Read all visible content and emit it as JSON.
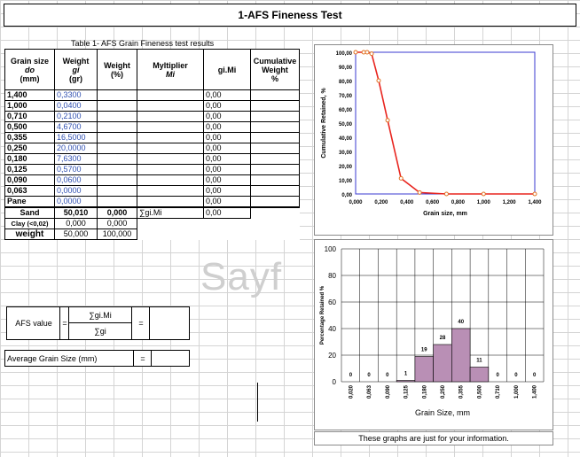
{
  "sheet": {
    "title": "1-AFS Fineness Test",
    "table_caption": "Table 1- AFS Grain Fineness test results",
    "watermark": "Sayf"
  },
  "table": {
    "headers": {
      "grain_size": [
        "Grain size",
        "do",
        "(mm)"
      ],
      "weight_gr": [
        "Weight",
        "gi",
        "(gr)"
      ],
      "weight_pct": [
        "Weight",
        "(%)"
      ],
      "multiplier": [
        "Myltiplier",
        "Mi"
      ],
      "gimi": "gi.Mi",
      "cumulative": [
        "Cumulative",
        "Weight",
        "%"
      ]
    },
    "rows": [
      {
        "size": "1,400",
        "weight": "0,3300",
        "gimi": "0,00"
      },
      {
        "size": "1,000",
        "weight": "0,0400",
        "gimi": "0,00"
      },
      {
        "size": "0,710",
        "weight": "0,2100",
        "gimi": "0,00"
      },
      {
        "size": "0,500",
        "weight": "4,6700",
        "gimi": "0,00"
      },
      {
        "size": "0,355",
        "weight": "16,5000",
        "gimi": "0,00"
      },
      {
        "size": "0,250",
        "weight": "20,0000",
        "gimi": "0,00"
      },
      {
        "size": "0,180",
        "weight": "7,6300",
        "gimi": "0,00"
      },
      {
        "size": "0,125",
        "weight": "0,5700",
        "gimi": "0,00"
      },
      {
        "size": "0,090",
        "weight": "0,0600",
        "gimi": "0,00"
      },
      {
        "size": "0,063",
        "weight": "0,0000",
        "gimi": "0,00"
      },
      {
        "size": "Pane",
        "weight": "0,0000",
        "gimi": "0,00"
      }
    ],
    "sand_row": {
      "label": "Sand",
      "weight": "50,010",
      "pct": "0,000",
      "mult": "∑gi.Mi",
      "gimi": "0,00"
    },
    "clay_row": {
      "label": "Clay (<0,02)",
      "weight": "0,000",
      "pct": "0,000"
    },
    "total_row": {
      "label": "weight",
      "weight": "50,000",
      "pct": "100,000"
    }
  },
  "afs": {
    "label": "AFS value",
    "eq": "=",
    "numerator": "∑gi.Mi",
    "denominator": "∑gi",
    "eq2": "="
  },
  "avg": {
    "label": "Average Grain Size (mm)",
    "eq": "="
  },
  "note": "These graphs are just for your information.",
  "chart_data": [
    {
      "type": "line",
      "title": "",
      "xlabel": "Grain size, mm",
      "ylabel": "Cumulative Retained, %",
      "xlim": [
        0,
        1.4
      ],
      "ylim": [
        0,
        100
      ],
      "x_ticks": [
        "0,000",
        "0,200",
        "0,400",
        "0,600",
        "0,800",
        "1,000",
        "1,200",
        "1,400"
      ],
      "y_ticks": [
        "0,00",
        "10,00",
        "20,00",
        "30,00",
        "40,00",
        "50,00",
        "60,00",
        "70,00",
        "80,00",
        "90,00",
        "100,00"
      ],
      "grid": false,
      "color": "#e8251f",
      "points": [
        {
          "x": 0.0,
          "y": 100
        },
        {
          "x": 0.063,
          "y": 100
        },
        {
          "x": 0.09,
          "y": 100
        },
        {
          "x": 0.125,
          "y": 99
        },
        {
          "x": 0.18,
          "y": 80
        },
        {
          "x": 0.25,
          "y": 52
        },
        {
          "x": 0.355,
          "y": 11
        },
        {
          "x": 0.5,
          "y": 1
        },
        {
          "x": 0.71,
          "y": 0
        },
        {
          "x": 1.0,
          "y": 0
        },
        {
          "x": 1.4,
          "y": 0
        }
      ]
    },
    {
      "type": "bar",
      "title": "",
      "xlabel": "Grain Size, mm",
      "ylabel": "Percentage Retained %",
      "ylim": [
        0,
        100
      ],
      "y_ticks": [
        "0",
        "20",
        "40",
        "60",
        "80",
        "100"
      ],
      "grid": true,
      "categories": [
        "0,020",
        "0,063",
        "0,090",
        "0,125",
        "0,180",
        "0,250",
        "0,355",
        "0,500",
        "0,710",
        "1,000",
        "1,400"
      ],
      "values": [
        0,
        0,
        0,
        1,
        19,
        28,
        40,
        11,
        0,
        0,
        0
      ],
      "labels": [
        "0",
        "0",
        "0",
        "1",
        "19",
        "28",
        "40",
        "11",
        "0",
        "0",
        "0"
      ],
      "bar_color": "#b98fb5"
    }
  ]
}
